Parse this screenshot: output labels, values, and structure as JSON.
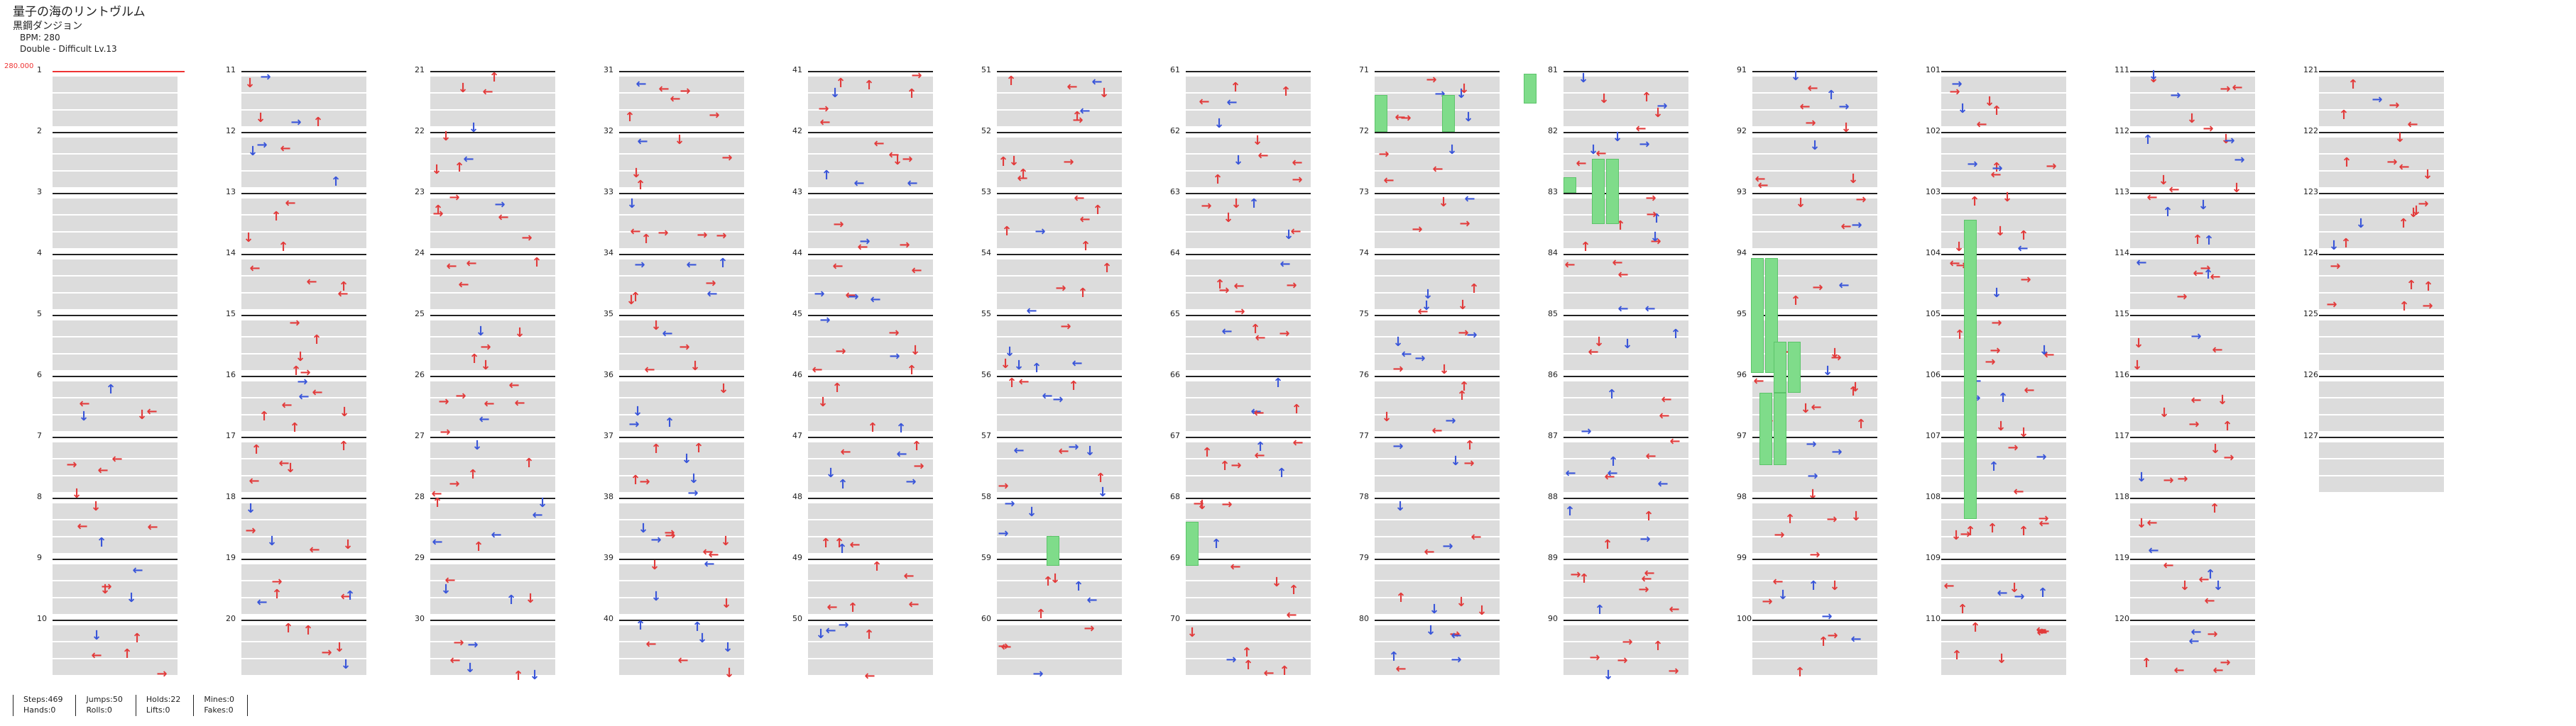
{
  "header": {
    "title": "量子の海のリントヴルム",
    "difficulty_name": "黒鋼ダンジョン",
    "bpm": "BPM: 280",
    "mode": "Double - Difficult  Lv.13"
  },
  "bpm_marker": "280.000",
  "measure_labels": [
    "1",
    "2",
    "3",
    "4",
    "5",
    "6",
    "7",
    "8",
    "9",
    "10",
    "11",
    "12",
    "13",
    "14",
    "15",
    "16",
    "17",
    "18",
    "19",
    "20",
    "21",
    "22",
    "23",
    "24",
    "25",
    "26",
    "27",
    "28",
    "29",
    "30",
    "31",
    "32",
    "33",
    "34",
    "35",
    "36",
    "37",
    "38",
    "39",
    "40",
    "41",
    "42",
    "43",
    "44",
    "45",
    "46",
    "47",
    "48",
    "49",
    "50",
    "51",
    "52",
    "53",
    "54",
    "55",
    "56",
    "57",
    "58",
    "59",
    "60",
    "61",
    "62",
    "63",
    "64",
    "65",
    "66",
    "67",
    "68",
    "69",
    "70",
    "71",
    "72",
    "73",
    "74",
    "75",
    "76",
    "77",
    "78",
    "79",
    "80",
    "81",
    "82",
    "83",
    "84",
    "85",
    "86",
    "87",
    "88",
    "89",
    "90",
    "91",
    "92",
    "93",
    "94",
    "95",
    "96",
    "97",
    "98",
    "99",
    "100",
    "101",
    "102",
    "103",
    "104",
    "105",
    "106",
    "107",
    "108",
    "109",
    "110",
    "111",
    "112",
    "113",
    "114",
    "115",
    "116",
    "117",
    "118",
    "119",
    "120",
    "121",
    "122",
    "123",
    "124",
    "125",
    "126",
    "127"
  ],
  "stats": {
    "steps": "Steps:469",
    "hands": "Hands:0",
    "jumps": "Jumps:50",
    "rolls": "Rolls:0",
    "holds": "Holds:22",
    "lifts": "Lifts:0",
    "mines": "Mines:0",
    "fakes": "Fakes:0"
  },
  "colors": {
    "red_arrow": "#e23b3b",
    "blue_arrow": "#3a56d9",
    "hold": "#7fdc8a",
    "lane_gray": "#dcdcdc",
    "bpm_marker": "#e33333"
  }
}
